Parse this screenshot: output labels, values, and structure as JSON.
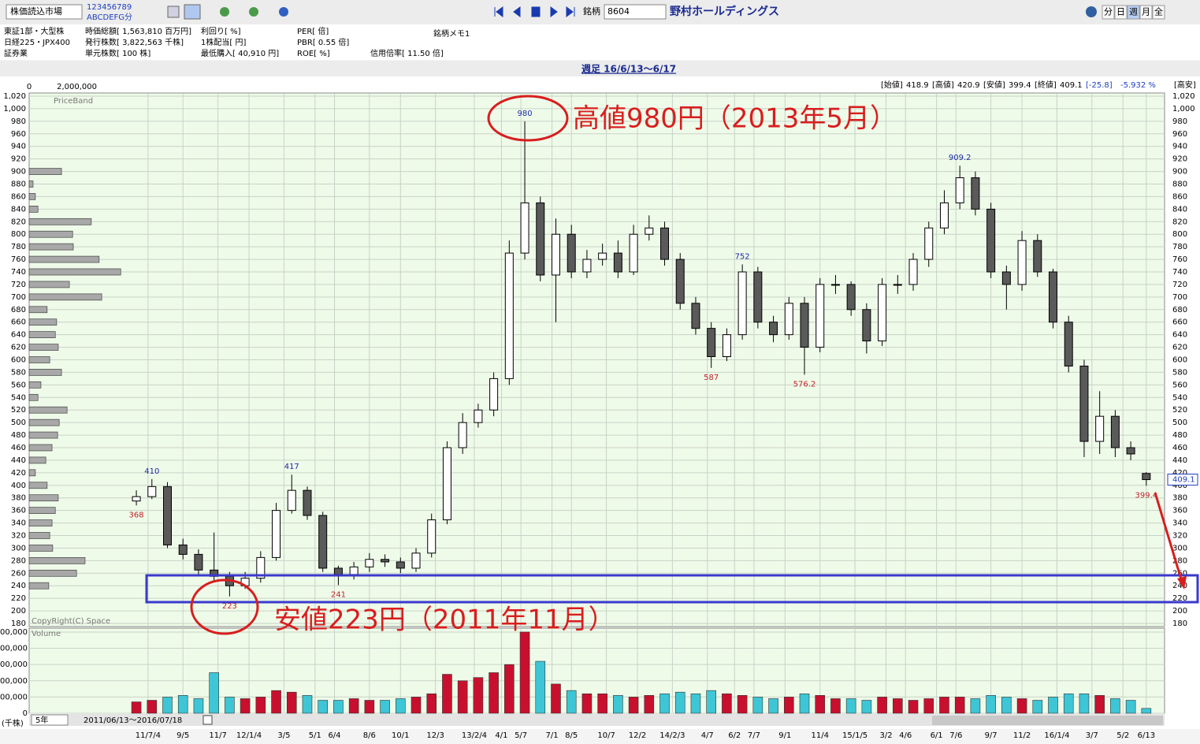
{
  "toolbar": {
    "market": "株価読込市場",
    "digits": "123456789",
    "letters": "ABCDEFG分",
    "code_label": "銘柄",
    "code": "8604",
    "name": "野村ホールディングス",
    "periods": [
      "分",
      "日",
      "週",
      "月",
      "全"
    ]
  },
  "info": [
    [
      "東証1部・大型株",
      "時価総額[ 1,563,810 百万円]",
      "利回り[ %]",
      "PER[ 倍]"
    ],
    [
      "日経225・JPX400",
      "発行株数[ 3,822,563 千株]",
      "1株配当[ 円]",
      "PBR[ 0.55 倍]"
    ],
    [
      "証券業",
      "単元株数[ 100 株]",
      "最低購入[ 40,910 円]",
      "ROE[ %]",
      "信用倍率[ 11.50 倍]"
    ]
  ],
  "memo": "銘柄メモ1",
  "chart_data": {
    "type": "candlestick",
    "title": "週足 16/6/13～6/17",
    "x": [
      0,
      4,
      8,
      12,
      16,
      20,
      24,
      28,
      32,
      36,
      40,
      44,
      48,
      52,
      56,
      60,
      64,
      68,
      72,
      76,
      80,
      84,
      88,
      92,
      96,
      100,
      104,
      108,
      112,
      116,
      120,
      124,
      128,
      132,
      136,
      140,
      144,
      148,
      152,
      156,
      160,
      164,
      168,
      172,
      176,
      180,
      184,
      188,
      192,
      196,
      200,
      204,
      208,
      212,
      216,
      220,
      224,
      228,
      232,
      236,
      240,
      244,
      248,
      252,
      256,
      260
    ],
    "open": [
      375,
      382,
      398,
      305,
      290,
      265,
      255,
      240,
      252,
      285,
      360,
      392,
      352,
      268,
      258,
      270,
      282,
      278,
      268,
      292,
      345,
      460,
      500,
      520,
      570,
      770,
      850,
      735,
      800,
      740,
      760,
      770,
      740,
      800,
      810,
      760,
      690,
      650,
      605,
      640,
      740,
      660,
      640,
      690,
      620,
      720,
      720,
      680,
      630,
      720,
      720,
      760,
      810,
      850,
      890,
      840,
      740,
      720,
      790,
      740,
      660,
      590,
      470,
      510,
      460,
      418.9
    ],
    "high": [
      392,
      410,
      405,
      315,
      298,
      325,
      262,
      262,
      295,
      372,
      417,
      398,
      358,
      272,
      278,
      292,
      290,
      285,
      300,
      355,
      470,
      515,
      530,
      580,
      790,
      980,
      860,
      825,
      815,
      775,
      785,
      790,
      815,
      830,
      820,
      770,
      700,
      660,
      650,
      752,
      748,
      670,
      700,
      700,
      730,
      735,
      725,
      690,
      730,
      735,
      770,
      820,
      870,
      909.2,
      900,
      850,
      750,
      805,
      800,
      745,
      670,
      600,
      550,
      520,
      470,
      420.9
    ],
    "low": [
      368,
      378,
      300,
      282,
      258,
      248,
      223,
      235,
      245,
      280,
      355,
      345,
      262,
      241,
      250,
      262,
      270,
      260,
      262,
      285,
      338,
      450,
      492,
      510,
      560,
      760,
      725,
      660,
      730,
      730,
      750,
      730,
      735,
      790,
      750,
      680,
      640,
      587,
      598,
      632,
      650,
      628,
      632,
      576.2,
      612,
      705,
      670,
      610,
      622,
      705,
      710,
      748,
      800,
      840,
      830,
      730,
      680,
      710,
      732,
      650,
      580,
      445,
      450,
      445,
      440,
      399.4
    ],
    "close": [
      382,
      398,
      305,
      290,
      265,
      255,
      240,
      252,
      285,
      360,
      392,
      352,
      268,
      258,
      270,
      282,
      278,
      268,
      292,
      345,
      460,
      500,
      520,
      570,
      770,
      850,
      735,
      800,
      740,
      760,
      770,
      740,
      800,
      810,
      760,
      690,
      650,
      605,
      640,
      740,
      660,
      640,
      690,
      620,
      720,
      720,
      680,
      630,
      720,
      720,
      760,
      810,
      850,
      890,
      840,
      740,
      720,
      790,
      740,
      660,
      590,
      470,
      510,
      460,
      450,
      409.1
    ],
    "xlim": [
      -27.6,
      264.7
    ],
    "xticks": [
      {
        "value": 3,
        "label": "11/7/4"
      },
      {
        "value": 12,
        "label": "9/5"
      },
      {
        "value": 21,
        "label": "11/7"
      },
      {
        "value": 29,
        "label": "12/1/4"
      },
      {
        "value": 38,
        "label": "3/5"
      },
      {
        "value": 46,
        "label": "5/1"
      },
      {
        "value": 51,
        "label": "6/4"
      },
      {
        "value": 60,
        "label": "8/6"
      },
      {
        "value": 68,
        "label": "10/1"
      },
      {
        "value": 77,
        "label": "12/3"
      },
      {
        "value": 87,
        "label": "13/2/4"
      },
      {
        "value": 94,
        "label": "4/1"
      },
      {
        "value": 99,
        "label": "5/7"
      },
      {
        "value": 107,
        "label": "7/1"
      },
      {
        "value": 112,
        "label": "8/5"
      },
      {
        "value": 121,
        "label": "10/7"
      },
      {
        "value": 129,
        "label": "12/2"
      },
      {
        "value": 138,
        "label": "14/2/3"
      },
      {
        "value": 147,
        "label": "4/7"
      },
      {
        "value": 154,
        "label": "6/2"
      },
      {
        "value": 159,
        "label": "7/7"
      },
      {
        "value": 167,
        "label": "9/1"
      },
      {
        "value": 176,
        "label": "11/4"
      },
      {
        "value": 185,
        "label": "15/1/5"
      },
      {
        "value": 193,
        "label": "3/2"
      },
      {
        "value": 198,
        "label": "4/6"
      },
      {
        "value": 206,
        "label": "6/1"
      },
      {
        "value": 211,
        "label": "7/6"
      },
      {
        "value": 220,
        "label": "9/7"
      },
      {
        "value": 228,
        "label": "11/2"
      },
      {
        "value": 237,
        "label": "16/1/4"
      },
      {
        "value": 246,
        "label": "3/7"
      },
      {
        "value": 254,
        "label": "5/2"
      },
      {
        "value": 260,
        "label": "6/13"
      }
    ],
    "ylim": [
      180,
      1020
    ],
    "yticks": [
      180,
      200,
      220,
      240,
      260,
      280,
      300,
      320,
      340,
      360,
      380,
      400,
      420,
      440,
      460,
      480,
      500,
      520,
      540,
      560,
      580,
      600,
      620,
      640,
      660,
      680,
      700,
      720,
      740,
      760,
      780,
      800,
      820,
      840,
      860,
      880,
      900,
      920,
      940,
      960,
      980,
      {
        "value": 1000,
        "label": "1,000"
      },
      {
        "value": 1020,
        "label": "1,020"
      }
    ],
    "grid": true,
    "up_color": "#ffffff",
    "down_color": "#5a5a5a",
    "edge_color": "#000000",
    "high_label_color": "#1c2aa8",
    "low_label_color": "#c0202a",
    "ohlc_labels": [
      "[始値]",
      "[高値]",
      "[安値]",
      "[終値]"
    ],
    "change": "[-25.8]",
    "change_pct": "-5.932 %",
    "hl_label": "[高安]",
    "priceband": {
      "label": "PriceBand",
      "levels": [
        900,
        880,
        860,
        840,
        820,
        800,
        780,
        760,
        740,
        720,
        700,
        680,
        660,
        640,
        620,
        600,
        580,
        560,
        540,
        520,
        500,
        480,
        460,
        440,
        420,
        400,
        380,
        360,
        340,
        320,
        300,
        280,
        260,
        240
      ],
      "values": [
        990000,
        120000,
        190000,
        270000,
        1900000,
        1330000,
        1350000,
        2140000,
        2800000,
        1230000,
        2220000,
        550000,
        840000,
        800000,
        890000,
        630000,
        990000,
        360000,
        270000,
        1160000,
        920000,
        870000,
        700000,
        510000,
        190000,
        550000,
        890000,
        800000,
        700000,
        630000,
        720000,
        1710000,
        1450000,
        600000
      ],
      "xlim": [
        0,
        2000000
      ],
      "xticks": [
        0,
        {
          "value": 2000000,
          "label": "2,000,000"
        }
      ],
      "color": "#a8a8a8"
    },
    "volume": {
      "label": "Volume",
      "unit": "(千株)",
      "values": [
        70000,
        80000,
        100000,
        110000,
        90000,
        250000,
        100000,
        90000,
        100000,
        140000,
        130000,
        110000,
        80000,
        80000,
        90000,
        80000,
        80000,
        90000,
        100000,
        120000,
        240000,
        200000,
        220000,
        250000,
        300000,
        500000,
        320000,
        180000,
        140000,
        120000,
        120000,
        110000,
        100000,
        110000,
        120000,
        130000,
        120000,
        140000,
        120000,
        110000,
        100000,
        90000,
        100000,
        120000,
        110000,
        90000,
        90000,
        80000,
        100000,
        90000,
        80000,
        90000,
        100000,
        100000,
        90000,
        110000,
        100000,
        90000,
        80000,
        100000,
        120000,
        120000,
        110000,
        90000,
        80000,
        30000
      ],
      "ylim": [
        0,
        524000
      ],
      "yticks": [
        0,
        {
          "value": 100000,
          "label": "00,000"
        },
        {
          "value": 200000,
          "label": "00,000"
        },
        {
          "value": 300000,
          "label": "00,000"
        },
        {
          "value": 400000,
          "label": "00,000"
        },
        {
          "value": 500000,
          "label": "00,000"
        }
      ],
      "up_color": "#c8102e",
      "down_color": "#3ec6d6"
    },
    "copyright": "CopyRight(C) Space",
    "annotations": [
      "高値980円（2013年5月）",
      "安値223円（2011年11月）"
    ],
    "range": "5年",
    "period": "2011/06/13～2016/07/18"
  }
}
